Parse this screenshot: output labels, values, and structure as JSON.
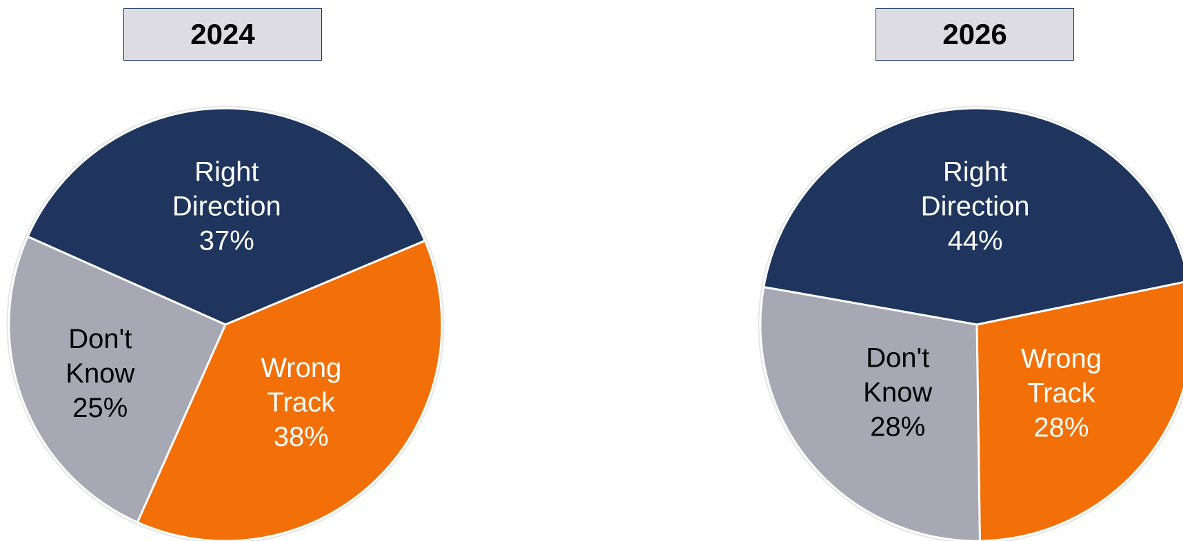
{
  "chart_data": [
    {
      "type": "pie",
      "title": "2024",
      "slices": [
        {
          "label_lines": [
            "Right",
            "Direction"
          ],
          "value_label": "37%",
          "value": 37,
          "color": "#1f355e",
          "text_color": "#ffffff"
        },
        {
          "label_lines": [
            "Wrong",
            "Track"
          ],
          "value_label": "38%",
          "value": 38,
          "color": "#f27007",
          "text_color": "#ffffff"
        },
        {
          "label_lines": [
            "Don't",
            "Know"
          ],
          "value_label": "25%",
          "value": 25,
          "color": "#a7a8b3",
          "text_color": "#000000"
        }
      ]
    },
    {
      "type": "pie",
      "title": "2026",
      "slices": [
        {
          "label_lines": [
            "Right",
            "Direction"
          ],
          "value_label": "44%",
          "value": 44,
          "color": "#1f355e",
          "text_color": "#ffffff"
        },
        {
          "label_lines": [
            "Wrong",
            "Track"
          ],
          "value_label": "28%",
          "value": 28,
          "color": "#f27007",
          "text_color": "#ffffff"
        },
        {
          "label_lines": [
            "Don't",
            "Know"
          ],
          "value_label": "28%",
          "value": 28,
          "color": "#a7a8b3",
          "text_color": "#000000"
        }
      ]
    }
  ]
}
